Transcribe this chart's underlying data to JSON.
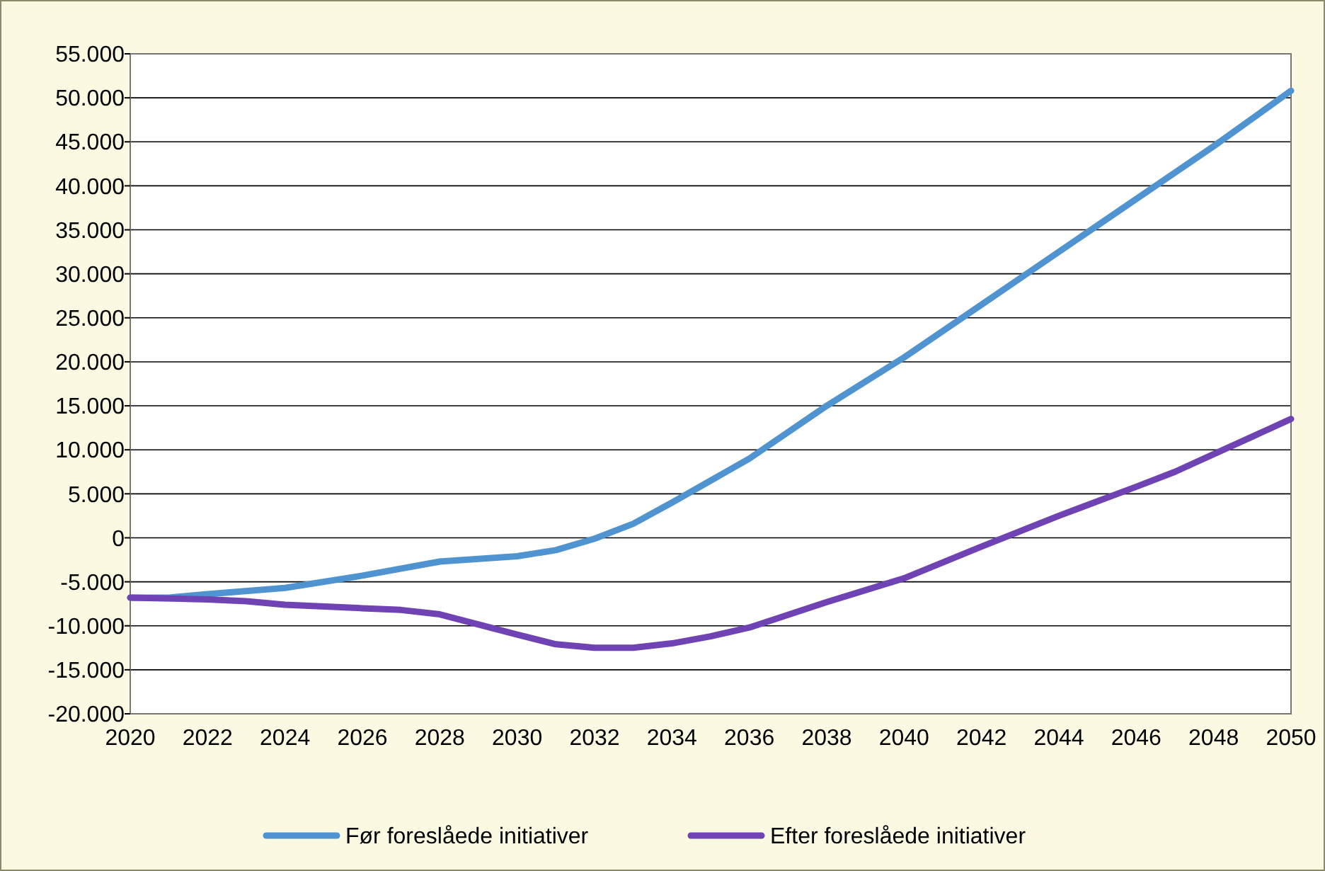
{
  "chart_data": {
    "type": "line",
    "x": [
      2020,
      2021,
      2022,
      2024,
      2026,
      2028,
      2030,
      2031,
      2032,
      2033,
      2034,
      2036,
      2038,
      2040,
      2042,
      2044,
      2046,
      2048,
      2050
    ],
    "series": [
      {
        "name": "Før foreslåede initiativer",
        "color": "#4f94d0",
        "values": [
          -6800,
          -6800,
          -6400,
          -5700,
          -4300,
          -2700,
          -2100,
          -1400,
          -100,
          1600,
          4000,
          9000,
          15000,
          20500,
          26500,
          32500,
          38500,
          44500,
          50800
        ]
      },
      {
        "name": "Efter foreslåede initiativer",
        "color": "#7043b4",
        "x": [
          2020,
          2022,
          2023,
          2024,
          2026,
          2027,
          2028,
          2030,
          2031,
          2032,
          2033,
          2034,
          2035,
          2036,
          2038,
          2040,
          2042,
          2044,
          2046,
          2047,
          2048,
          2050
        ],
        "values": [
          -6800,
          -7000,
          -7200,
          -7600,
          -8000,
          -8200,
          -8700,
          -11000,
          -12100,
          -12500,
          -12500,
          -12000,
          -11200,
          -10200,
          -7300,
          -4600,
          -1000,
          2500,
          5800,
          7500,
          9500,
          13500
        ]
      }
    ],
    "xlim": [
      2020,
      2050
    ],
    "xticks": [
      2020,
      2022,
      2024,
      2026,
      2028,
      2030,
      2032,
      2034,
      2036,
      2038,
      2040,
      2042,
      2044,
      2046,
      2048,
      2050
    ],
    "ylim": [
      -20000,
      55000
    ],
    "yticks": [
      {
        "value": -20000,
        "label": "-20.000"
      },
      {
        "value": -15000,
        "label": "-15.000"
      },
      {
        "value": -10000,
        "label": "-10.000"
      },
      {
        "value": -5000,
        "label": "-5.000"
      },
      0,
      {
        "value": 5000,
        "label": "5.000"
      },
      {
        "value": 10000,
        "label": "10.000"
      },
      {
        "value": 15000,
        "label": "15.000"
      },
      {
        "value": 20000,
        "label": "20.000"
      },
      {
        "value": 25000,
        "label": "25.000"
      },
      {
        "value": 30000,
        "label": "30.000"
      },
      {
        "value": 35000,
        "label": "35.000"
      },
      {
        "value": 40000,
        "label": "40.000"
      },
      {
        "value": 45000,
        "label": "45.000"
      },
      {
        "value": 50000,
        "label": "50.000"
      },
      {
        "value": 55000,
        "label": "55.000"
      }
    ],
    "grid": "y",
    "legend": "bottom",
    "marker": "none",
    "line_style": "solid"
  }
}
